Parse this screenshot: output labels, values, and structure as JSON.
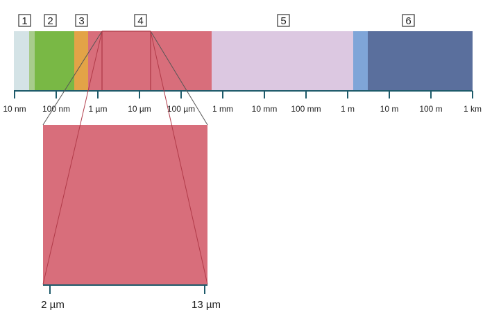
{
  "spectrum": {
    "bands": [
      {
        "id": "band-uv-light",
        "color": "#d4e3e6"
      },
      {
        "id": "band-uv-mid",
        "color": "#a8cc8c"
      },
      {
        "id": "band-visible-green",
        "color": "#79b845"
      },
      {
        "id": "band-visible-orange",
        "color": "#e3a347"
      },
      {
        "id": "band-infrared",
        "color": "#d86e7b"
      },
      {
        "id": "band-microwave",
        "color": "#dcc8e1"
      },
      {
        "id": "band-radio-light",
        "color": "#7fa5d8"
      },
      {
        "id": "band-radio",
        "color": "#5a6f9d"
      }
    ],
    "region_labels": [
      "1",
      "2",
      "3",
      "4",
      "5",
      "6"
    ],
    "scale_labels": [
      "10 nm",
      "100 nm",
      "1 µm",
      "10 µm",
      "100 µm",
      "1 mm",
      "10 mm",
      "100 mm",
      "1 m",
      "10 m",
      "100 m",
      "1 km"
    ]
  },
  "zoom": {
    "color": "#d86e7b",
    "start_label": "2 µm",
    "end_label": "13 µm"
  }
}
